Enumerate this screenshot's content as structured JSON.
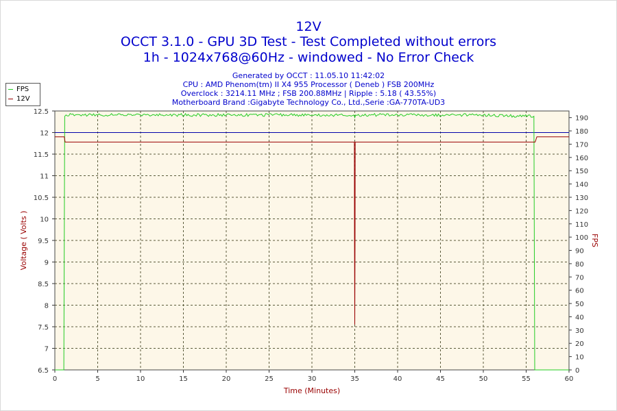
{
  "header": {
    "title_line1": "12V",
    "title_line2": "OCCT 3.1.0 - GPU 3D Test - Test Completed without errors",
    "title_line3": "1h - 1024x768@60Hz - windowed - No Error Check",
    "info_line1": "Generated by OCCT : 11.05.10 11:42:02",
    "info_line2": "CPU : AMD Phenom(tm) II X4 955 Processor ( Deneb ) FSB 200MHz",
    "info_line3": "Overclock : 3214.11 MHz ; FSB 200.88MHz | Ripple : 5.18 ( 43.55%)",
    "info_line4": "Motherboard Brand :Gigabyte Technology Co., Ltd.,Serie :GA-770TA-UD3"
  },
  "legend": {
    "items": [
      {
        "label": "FPS",
        "color": "#22cc22"
      },
      {
        "label": "12V",
        "color": "#990000"
      }
    ]
  },
  "chart_data": {
    "type": "line",
    "xlabel": "Time (Minutes)",
    "ylabel": "Voltage ( Volts )",
    "y2label": "FPS",
    "xlim": [
      0,
      60
    ],
    "ylim": [
      6.5,
      12.5
    ],
    "y2lim": [
      0,
      195
    ],
    "x_ticks": [
      0,
      5,
      10,
      15,
      20,
      25,
      30,
      35,
      40,
      45,
      50,
      55,
      60
    ],
    "y_ticks": [
      "6.5",
      "7",
      "7.5",
      "8",
      "8.5",
      "9",
      "9.5",
      "10",
      "10.5",
      "11",
      "11.5",
      "12",
      "12.5"
    ],
    "y2_ticks": [
      0,
      10,
      20,
      30,
      40,
      50,
      60,
      70,
      80,
      90,
      100,
      110,
      120,
      130,
      140,
      150,
      160,
      170,
      180,
      190
    ],
    "grid": true,
    "reference_line": {
      "value": 12.0,
      "color": "#0000aa"
    },
    "series": [
      {
        "name": "FPS",
        "axis": "right",
        "color": "#22cc22",
        "x": [
          0,
          1.05,
          1.15,
          1.3,
          5,
          10,
          20,
          30,
          34.9,
          35.0,
          35.1,
          40,
          50,
          55.9,
          56.0,
          56.1,
          60
        ],
        "values": [
          0,
          0,
          191,
          192,
          192,
          192,
          192,
          192,
          192,
          190,
          192,
          192,
          192,
          191,
          0,
          0,
          0
        ]
      },
      {
        "name": "12V",
        "axis": "left",
        "color": "#990000",
        "x": [
          0,
          1.1,
          1.2,
          30,
          34.95,
          34.97,
          35.0,
          35.03,
          35.05,
          50,
          56.05,
          56.25,
          60
        ],
        "values": [
          11.9,
          11.9,
          11.78,
          11.78,
          11.78,
          9.65,
          7.55,
          9.65,
          11.78,
          11.78,
          11.78,
          11.9,
          11.9
        ]
      }
    ]
  }
}
